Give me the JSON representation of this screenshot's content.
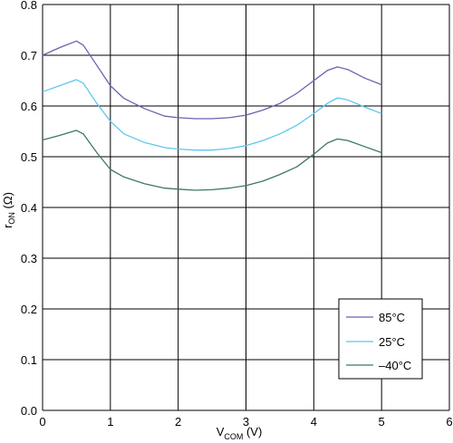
{
  "chart_data": {
    "type": "line",
    "title": "",
    "xlabel": {
      "main": "V",
      "sub": "COM",
      "unit": " (V)"
    },
    "ylabel": {
      "main": "r",
      "sub": "ON",
      "unit": " (Ω)"
    },
    "xlim": [
      0,
      6
    ],
    "ylim": [
      0.0,
      0.8
    ],
    "xticks": [
      "0",
      "1",
      "2",
      "3",
      "4",
      "5",
      "6"
    ],
    "yticks": [
      "0.0",
      "0.1",
      "0.2",
      "0.3",
      "0.4",
      "0.5",
      "0.6",
      "0.7",
      "0.8"
    ],
    "grid": true,
    "legend_position": "bottom-right",
    "series": [
      {
        "name": "85°C",
        "color": "#6f5fb0",
        "points": [
          [
            0,
            0.7
          ],
          [
            0.25,
            0.715
          ],
          [
            0.5,
            0.728
          ],
          [
            0.6,
            0.72
          ],
          [
            0.8,
            0.68
          ],
          [
            1.0,
            0.64
          ],
          [
            1.2,
            0.615
          ],
          [
            1.5,
            0.595
          ],
          [
            1.8,
            0.58
          ],
          [
            2.0,
            0.577
          ],
          [
            2.25,
            0.575
          ],
          [
            2.5,
            0.575
          ],
          [
            2.75,
            0.577
          ],
          [
            3.0,
            0.582
          ],
          [
            3.25,
            0.592
          ],
          [
            3.5,
            0.605
          ],
          [
            3.75,
            0.625
          ],
          [
            4.0,
            0.65
          ],
          [
            4.2,
            0.67
          ],
          [
            4.35,
            0.677
          ],
          [
            4.5,
            0.672
          ],
          [
            4.75,
            0.655
          ],
          [
            5.0,
            0.642
          ]
        ]
      },
      {
        "name": "25°C",
        "color": "#5ec8ec",
        "points": [
          [
            0,
            0.628
          ],
          [
            0.25,
            0.64
          ],
          [
            0.5,
            0.652
          ],
          [
            0.6,
            0.645
          ],
          [
            0.8,
            0.605
          ],
          [
            1.0,
            0.57
          ],
          [
            1.2,
            0.545
          ],
          [
            1.5,
            0.528
          ],
          [
            1.8,
            0.518
          ],
          [
            2.0,
            0.515
          ],
          [
            2.25,
            0.513
          ],
          [
            2.5,
            0.513
          ],
          [
            2.75,
            0.516
          ],
          [
            3.0,
            0.522
          ],
          [
            3.25,
            0.532
          ],
          [
            3.5,
            0.545
          ],
          [
            3.75,
            0.562
          ],
          [
            4.0,
            0.585
          ],
          [
            4.2,
            0.605
          ],
          [
            4.35,
            0.616
          ],
          [
            4.5,
            0.612
          ],
          [
            4.75,
            0.598
          ],
          [
            5.0,
            0.585
          ]
        ]
      },
      {
        "name": "–40°C",
        "color": "#3d7a5c",
        "points": [
          [
            0,
            0.533
          ],
          [
            0.25,
            0.542
          ],
          [
            0.5,
            0.552
          ],
          [
            0.6,
            0.545
          ],
          [
            0.8,
            0.508
          ],
          [
            1.0,
            0.475
          ],
          [
            1.2,
            0.46
          ],
          [
            1.5,
            0.447
          ],
          [
            1.8,
            0.438
          ],
          [
            2.0,
            0.436
          ],
          [
            2.25,
            0.434
          ],
          [
            2.5,
            0.435
          ],
          [
            2.75,
            0.438
          ],
          [
            3.0,
            0.443
          ],
          [
            3.25,
            0.452
          ],
          [
            3.5,
            0.465
          ],
          [
            3.75,
            0.48
          ],
          [
            4.0,
            0.505
          ],
          [
            4.2,
            0.527
          ],
          [
            4.35,
            0.535
          ],
          [
            4.5,
            0.532
          ],
          [
            4.75,
            0.52
          ],
          [
            5.0,
            0.508
          ]
        ]
      }
    ]
  }
}
